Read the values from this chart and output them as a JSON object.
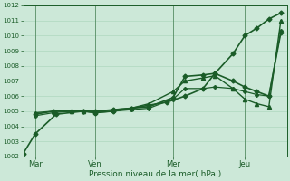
{
  "bg_color": "#cce8d8",
  "grid_color": "#a8d4b8",
  "line_color": "#1a5c28",
  "xlabel": "Pression niveau de la mer( hPa )",
  "ylim": [
    1002,
    1012
  ],
  "xlim": [
    0,
    4.4
  ],
  "yticks": [
    1002,
    1003,
    1004,
    1005,
    1006,
    1007,
    1008,
    1009,
    1010,
    1011,
    1012
  ],
  "xtick_labels": [
    "Mar",
    "Ven",
    "Mer",
    "Jeu"
  ],
  "xtick_positions": [
    0.2,
    1.2,
    2.5,
    3.7
  ],
  "vline_positions": [
    0.2,
    1.2,
    2.5,
    3.7
  ],
  "series": [
    {
      "x": [
        0.0,
        0.2,
        0.55,
        1.0,
        1.2,
        1.5,
        1.8,
        2.1,
        2.4,
        2.7,
        3.0,
        3.2,
        3.5,
        3.7,
        3.9,
        4.1,
        4.3
      ],
      "y": [
        1002.2,
        1003.5,
        1004.8,
        1005.0,
        1005.0,
        1005.1,
        1005.2,
        1005.4,
        1005.6,
        1006.0,
        1006.5,
        1007.5,
        1008.8,
        1010.0,
        1010.5,
        1011.1,
        1011.5
      ],
      "marker": "D",
      "markersize": 2.5,
      "linewidth": 1.2
    },
    {
      "x": [
        0.2,
        0.5,
        0.8,
        1.0,
        1.2,
        1.5,
        1.8,
        2.1,
        2.5,
        2.7,
        3.0,
        3.2,
        3.5,
        3.7,
        3.9,
        4.1,
        4.3
      ],
      "y": [
        1004.8,
        1005.0,
        1005.0,
        1005.0,
        1004.9,
        1005.0,
        1005.2,
        1005.3,
        1005.9,
        1007.3,
        1007.4,
        1007.5,
        1007.0,
        1006.6,
        1006.3,
        1006.0,
        1010.2
      ],
      "marker": "D",
      "markersize": 2.5,
      "linewidth": 1.2
    },
    {
      "x": [
        0.2,
        0.5,
        0.8,
        1.0,
        1.2,
        1.5,
        1.8,
        2.1,
        2.5,
        2.7,
        3.0,
        3.2,
        3.5,
        3.7,
        3.9,
        4.1,
        4.3
      ],
      "y": [
        1004.9,
        1005.0,
        1005.0,
        1005.0,
        1004.95,
        1005.1,
        1005.2,
        1005.5,
        1006.3,
        1007.0,
        1007.2,
        1007.35,
        1006.5,
        1005.8,
        1005.5,
        1005.3,
        1011.0
      ],
      "marker": "^",
      "markersize": 3.0,
      "linewidth": 1.0
    },
    {
      "x": [
        0.2,
        0.5,
        0.8,
        1.0,
        1.2,
        1.5,
        1.8,
        2.1,
        2.5,
        2.7,
        3.0,
        3.2,
        3.5,
        3.7,
        3.9,
        4.1,
        4.3
      ],
      "y": [
        1004.7,
        1004.9,
        1005.0,
        1005.0,
        1004.9,
        1005.0,
        1005.1,
        1005.2,
        1005.8,
        1006.5,
        1006.5,
        1006.6,
        1006.5,
        1006.3,
        1006.1,
        1006.0,
        1010.3
      ],
      "marker": "P",
      "markersize": 2.5,
      "linewidth": 0.9
    }
  ]
}
